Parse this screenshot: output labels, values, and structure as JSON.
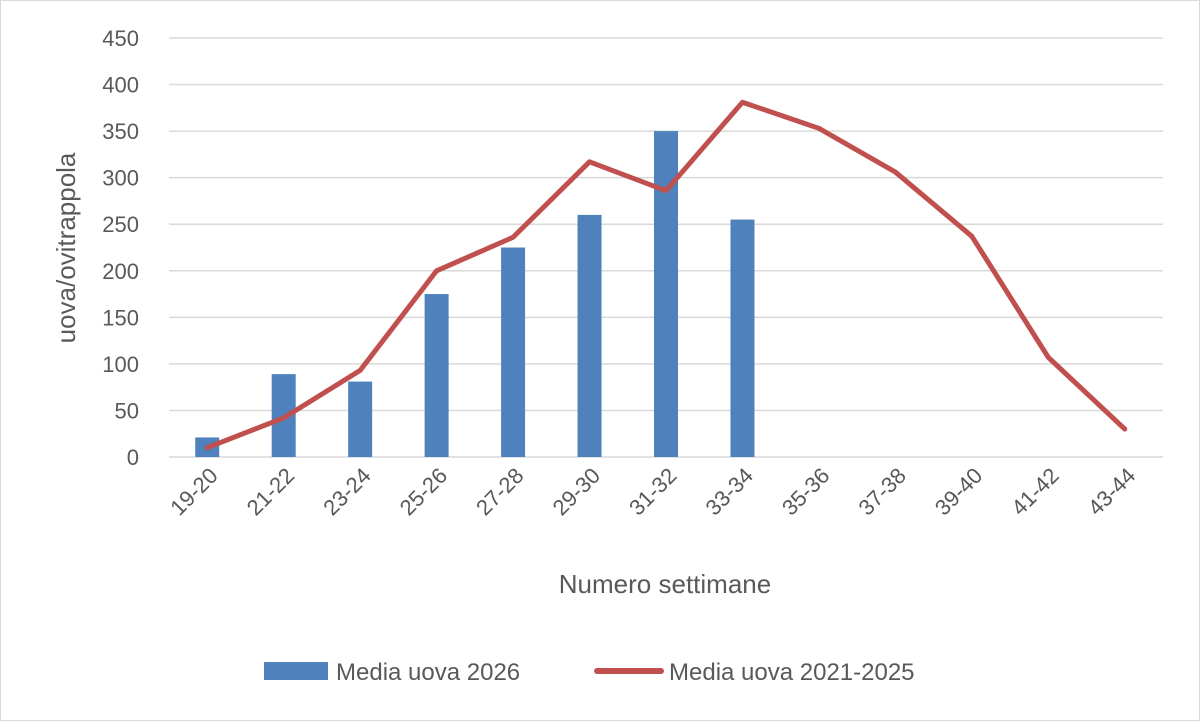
{
  "chart_data": {
    "type": "bar+line",
    "categories": [
      "19-20",
      "21-22",
      "23-24",
      "25-26",
      "27-28",
      "29-30",
      "31-32",
      "33-34",
      "35-36",
      "37-38",
      "39-40",
      "41-42",
      "43-44"
    ],
    "series": [
      {
        "name": "Media uova 2026",
        "type": "bar",
        "color": "#4f81bd",
        "values": [
          21,
          89,
          81,
          175,
          225,
          260,
          350,
          255,
          null,
          null,
          null,
          null,
          null
        ]
      },
      {
        "name": "Media uova 2021-2025",
        "type": "line",
        "color": "#c0504d",
        "values": [
          10,
          42,
          93,
          200,
          236,
          317,
          286,
          381,
          353,
          306,
          237,
          107,
          30
        ]
      }
    ],
    "xlabel": "Numero settimane",
    "ylabel": "uova/ovitrappola",
    "ylim": [
      0,
      450
    ],
    "yticks": [
      0,
      50,
      100,
      150,
      200,
      250,
      300,
      350,
      400,
      450
    ],
    "grid": true,
    "legend": "bottom"
  }
}
